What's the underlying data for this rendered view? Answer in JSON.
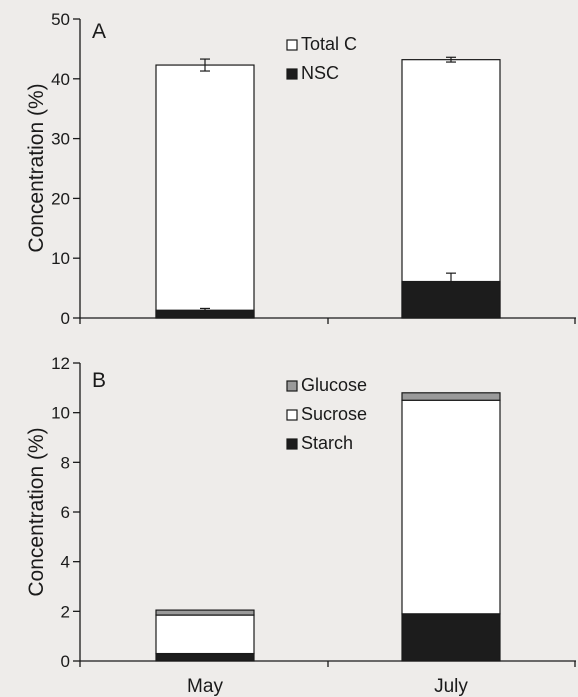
{
  "colors": {
    "background": "#eeecea",
    "ink": "#1a1a1a",
    "bar_white": "#ffffff",
    "bar_black": "#1c1c1c",
    "bar_gray": "#9a9a9a"
  },
  "categories": [
    "May",
    "July"
  ],
  "chart_data": [
    {
      "type": "bar",
      "panel_label": "A",
      "ylabel": "Concentration (%)",
      "ylim": [
        0,
        50
      ],
      "yticks": [
        0,
        10,
        20,
        30,
        40,
        50
      ],
      "categories": [
        "May",
        "July"
      ],
      "legend_placement": "top-center",
      "series": [
        {
          "name": "Total C",
          "values": [
            42.3,
            43.2
          ],
          "errors": [
            1.0,
            0.4
          ],
          "color": "#ffffff"
        },
        {
          "name": "NSC",
          "values": [
            1.3,
            6.1
          ],
          "errors": [
            0.3,
            1.4
          ],
          "color": "#1c1c1c"
        }
      ]
    },
    {
      "type": "bar",
      "stacked": true,
      "panel_label": "B",
      "ylabel": "Concentration (%)",
      "ylim": [
        0,
        12
      ],
      "yticks": [
        0,
        2,
        4,
        6,
        8,
        10,
        12
      ],
      "categories": [
        "May",
        "July"
      ],
      "legend_placement": "top-center",
      "series": [
        {
          "name": "Glucose",
          "values": [
            0.2,
            0.3
          ],
          "color": "#9a9a9a"
        },
        {
          "name": "Sucrose",
          "values": [
            1.55,
            8.6
          ],
          "color": "#ffffff"
        },
        {
          "name": "Starch",
          "values": [
            0.3,
            1.9
          ],
          "color": "#1c1c1c"
        }
      ]
    }
  ]
}
